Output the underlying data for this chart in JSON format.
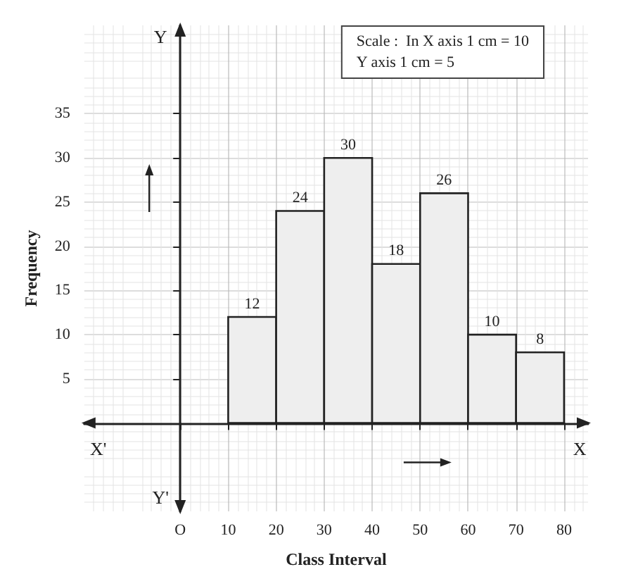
{
  "chart_data": {
    "type": "histogram",
    "xlabel": "Class Interval",
    "ylabel": "Frequency",
    "bins": [
      10,
      20,
      30,
      40,
      50,
      60,
      70,
      80
    ],
    "values": [
      12,
      24,
      30,
      18,
      26,
      10,
      8
    ],
    "color": "#eeeeee",
    "data_labels": true,
    "xlim": [
      -20,
      85
    ],
    "ylim": [
      -10,
      45
    ],
    "xticks": [
      {
        "value": 0,
        "label": "O"
      },
      10,
      20,
      30,
      40,
      50,
      60,
      70,
      80
    ],
    "yticks": [
      5,
      10,
      15,
      20,
      25,
      30,
      35
    ],
    "grid": true,
    "annotations": [
      "Scale :  In X axis 1 cm = 10",
      "Y axis 1 cm = 5",
      "X'",
      "X",
      "Y",
      "Y'"
    ]
  }
}
